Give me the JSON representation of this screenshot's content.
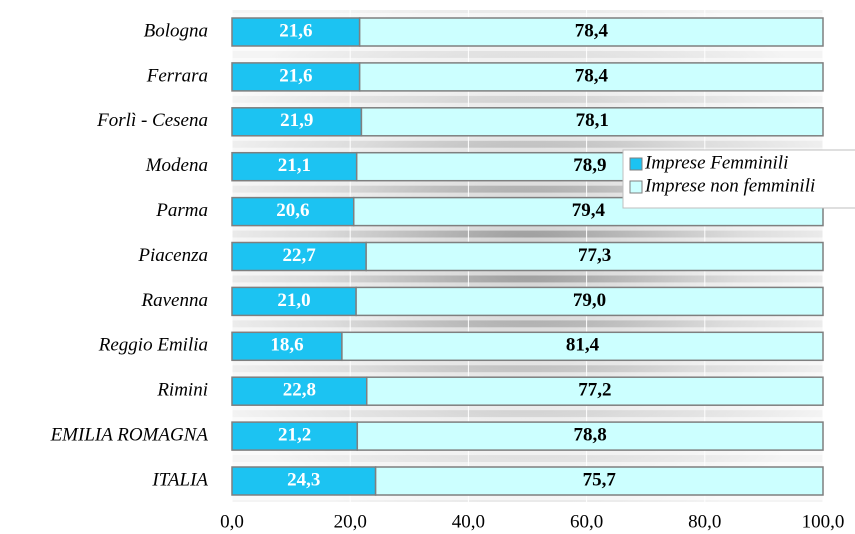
{
  "chart_data": {
    "type": "stacked_barh",
    "categories": [
      "Bologna",
      "Ferrara",
      "Forlì - Cesena",
      "Modena",
      "Parma",
      "Piacenza",
      "Ravenna",
      "Reggio Emilia",
      "Rimini",
      "EMILIA ROMAGNA",
      "ITALIA"
    ],
    "series": [
      {
        "name": "Imprese Femminili",
        "color": "#1cc3f2",
        "values": [
          21.6,
          21.6,
          21.9,
          21.1,
          20.6,
          22.7,
          21.0,
          18.6,
          22.8,
          21.2,
          24.3
        ],
        "value_labels": [
          "21,6",
          "21,6",
          "21,9",
          "21,1",
          "20,6",
          "22,7",
          "21,0",
          "18,6",
          "22,8",
          "21,2",
          "24,3"
        ]
      },
      {
        "name": "Imprese non femminili",
        "color": "#ccffff",
        "values": [
          78.4,
          78.4,
          78.1,
          78.9,
          79.4,
          77.3,
          79.0,
          81.4,
          77.2,
          78.8,
          75.7
        ],
        "value_labels": [
          "78,4",
          "78,4",
          "78,1",
          "78,9",
          "79,4",
          "77,3",
          "79,0",
          "81,4",
          "77,2",
          "78,8",
          "75,7"
        ]
      }
    ],
    "xlim": [
      0,
      100
    ],
    "xticks": [
      {
        "value": 0,
        "label": "0,0"
      },
      {
        "value": 20,
        "label": "20,0"
      },
      {
        "value": 40,
        "label": "40,0"
      },
      {
        "value": 60,
        "label": "60,0"
      },
      {
        "value": 80,
        "label": "80,0"
      },
      {
        "value": 100,
        "label": "100,0"
      }
    ],
    "legend": "right"
  }
}
